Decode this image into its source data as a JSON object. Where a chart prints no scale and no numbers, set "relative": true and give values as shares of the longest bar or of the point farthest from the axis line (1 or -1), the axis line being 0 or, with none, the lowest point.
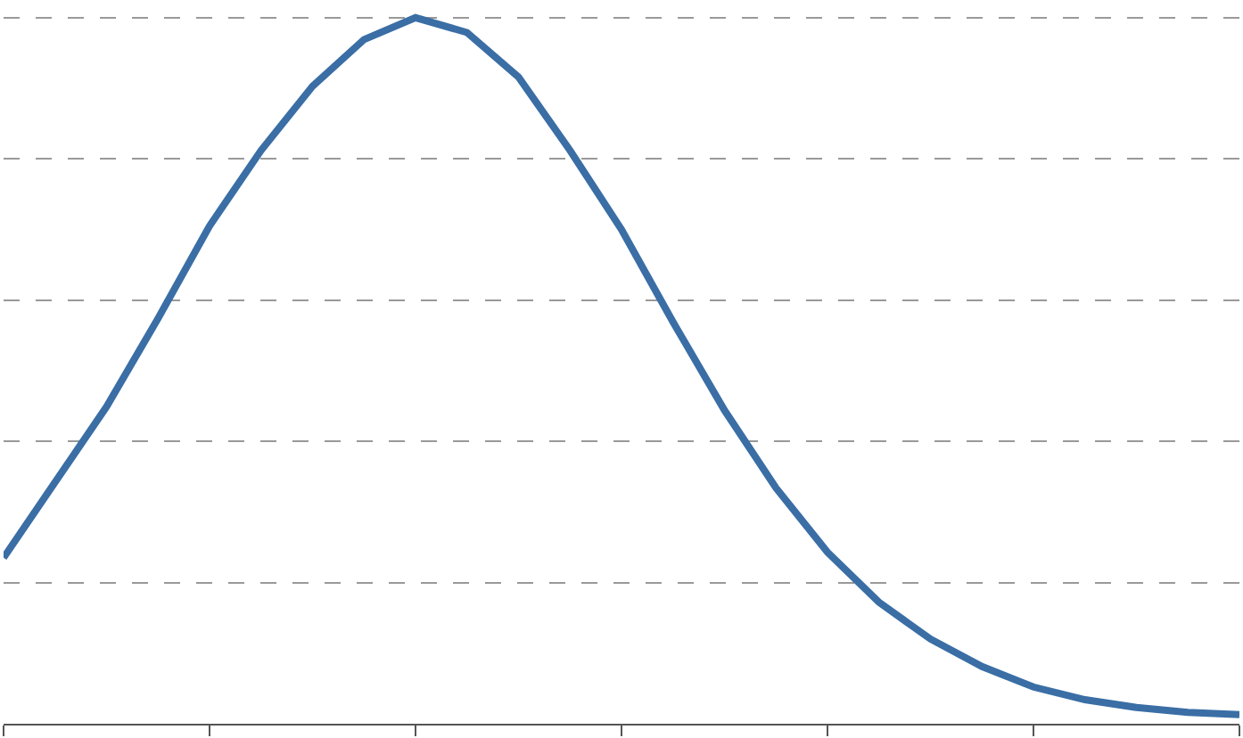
{
  "chart_data": {
    "type": "line",
    "relative": true,
    "grid": "y",
    "marker": "none",
    "line_style": "solid",
    "categories": [
      null,
      null,
      null,
      null,
      null,
      null,
      null,
      null,
      null,
      null,
      null,
      null,
      null,
      null,
      null,
      null,
      null,
      null,
      null,
      null,
      null,
      null,
      null,
      null,
      null
    ],
    "series": [
      {
        "color": "#3a6ea5",
        "values": [
          0.235,
          0.342,
          0.449,
          0.574,
          0.705,
          0.812,
          0.903,
          0.969,
          1,
          0.979,
          0.916,
          0.812,
          0.7,
          0.569,
          0.444,
          0.334,
          0.243,
          0.172,
          0.12,
          0.081,
          0.052,
          0.034,
          0.023,
          0.016,
          0.013
        ]
      }
    ]
  }
}
